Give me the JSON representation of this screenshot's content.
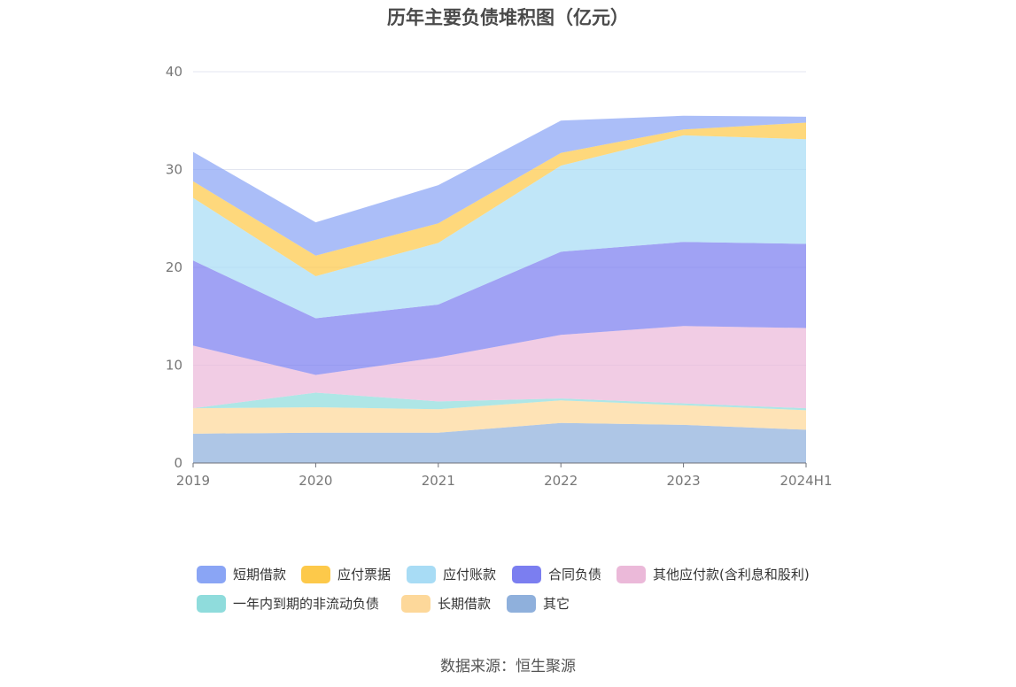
{
  "chart_data": {
    "type": "area",
    "title": "历年主要负债堆积图（亿元）",
    "categories": [
      "2019",
      "2020",
      "2021",
      "2022",
      "2023",
      "2024H1"
    ],
    "ylim": [
      0,
      40
    ],
    "yticks": [
      0,
      10,
      20,
      30,
      40
    ],
    "grid": true,
    "legend_position": "bottom",
    "series": [
      {
        "name": "其它",
        "color": "#8fb0dc",
        "values": [
          3.0,
          3.1,
          3.1,
          4.1,
          3.9,
          3.4
        ]
      },
      {
        "name": "长期借款",
        "color": "#fdd89a",
        "values": [
          2.6,
          2.6,
          2.4,
          2.3,
          2.0,
          2.0
        ]
      },
      {
        "name": "一年内到期的非流动负债",
        "color": "#8fdcdc",
        "values": [
          0.0,
          1.5,
          0.8,
          0.2,
          0.2,
          0.2
        ]
      },
      {
        "name": "其他应付款(含利息和股利)",
        "color": "#ebb9d9",
        "values": [
          6.4,
          1.8,
          4.5,
          6.5,
          7.9,
          8.2
        ]
      },
      {
        "name": "合同负债",
        "color": "#7b7ef0",
        "values": [
          8.7,
          5.8,
          5.4,
          8.5,
          8.6,
          8.6
        ]
      },
      {
        "name": "应付账款",
        "color": "#a8dcf5",
        "values": [
          6.4,
          4.3,
          6.3,
          8.8,
          10.9,
          10.7
        ]
      },
      {
        "name": "应付票据",
        "color": "#fdc94a",
        "values": [
          1.7,
          2.1,
          2.0,
          1.3,
          0.6,
          1.7
        ]
      },
      {
        "name": "短期借款",
        "color": "#8aa5f5",
        "values": [
          3.0,
          3.4,
          3.9,
          3.3,
          1.4,
          0.6
        ]
      }
    ]
  },
  "legend": [
    {
      "label": "短期借款",
      "color": "#8aa5f5"
    },
    {
      "label": "应付票据",
      "color": "#fdc94a"
    },
    {
      "label": "应付账款",
      "color": "#a8dcf5"
    },
    {
      "label": "合同负债",
      "color": "#7b7ef0"
    },
    {
      "label": "其他应付款(含利息和股利)",
      "color": "#ebb9d9"
    },
    {
      "label": "一年内到期的非流动负债",
      "color": "#8fdcdc"
    },
    {
      "label": "长期借款",
      "color": "#fdd89a"
    },
    {
      "label": "其它",
      "color": "#8fb0dc"
    }
  ],
  "source": "数据来源：恒生聚源"
}
